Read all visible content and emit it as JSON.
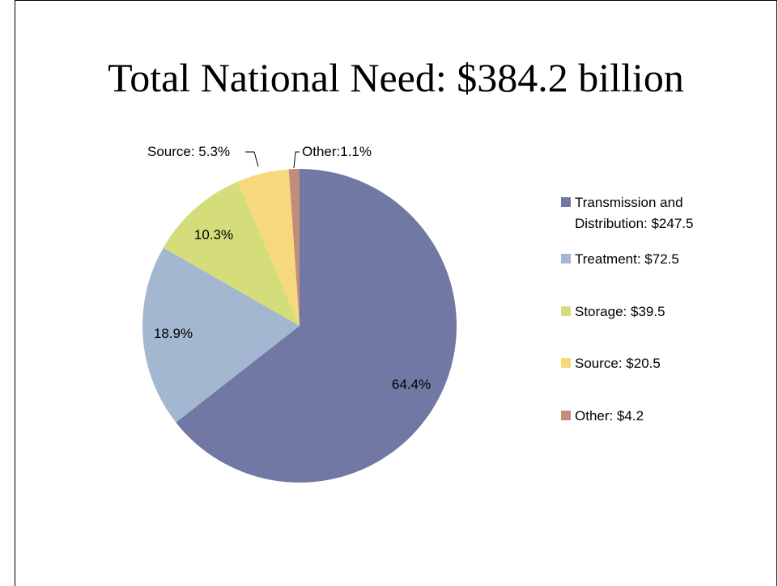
{
  "chart_data": {
    "type": "pie",
    "title": "Total National Need: $384.2 billion",
    "slices": [
      {
        "name": "Transmission and Distribution",
        "legend_lines": [
          "Transmission and",
          "Distribution:  $247.5"
        ],
        "value": 247.5,
        "percent": 64.4,
        "label": "64.4%",
        "color": "#7178A3"
      },
      {
        "name": "Treatment",
        "legend_lines": [
          "Treatment: $72.5"
        ],
        "value": 72.5,
        "percent": 18.9,
        "label": "18.9%",
        "color": "#A3B8D0"
      },
      {
        "name": "Storage",
        "legend_lines": [
          "Storage: $39.5"
        ],
        "value": 39.5,
        "percent": 10.3,
        "label": "10.3%",
        "color": "#D5DC7A"
      },
      {
        "name": "Source",
        "legend_lines": [
          "Source: $20.5"
        ],
        "value": 20.5,
        "percent": 5.3,
        "label": "Source: 5.3%",
        "color": "#F6D97C"
      },
      {
        "name": "Other",
        "legend_lines": [
          "Other: $4.2"
        ],
        "value": 4.2,
        "percent": 1.1,
        "label": "Other:1.1%",
        "color": "#C28C7C"
      }
    ],
    "legend_position": "right"
  }
}
